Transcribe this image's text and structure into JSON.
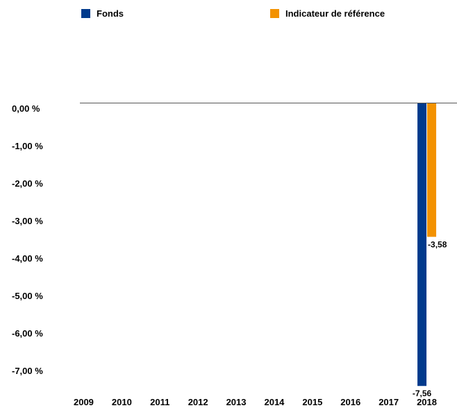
{
  "chart_data": {
    "type": "bar",
    "categories": [
      "2009",
      "2010",
      "2011",
      "2012",
      "2013",
      "2014",
      "2015",
      "2016",
      "2017",
      "2018"
    ],
    "series": [
      {
        "name": "Fonds",
        "color": "#003a8c",
        "values": [
          null,
          null,
          null,
          null,
          null,
          null,
          null,
          null,
          null,
          -7.56
        ],
        "labels": [
          "",
          "",
          "",
          "",
          "",
          "",
          "",
          "",
          "",
          "-7,56"
        ]
      },
      {
        "name": "Indicateur de référence",
        "color": "#f39200",
        "values": [
          null,
          null,
          null,
          null,
          null,
          null,
          null,
          null,
          null,
          -3.58
        ],
        "labels": [
          "",
          "",
          "",
          "",
          "",
          "",
          "",
          "",
          "",
          "-3,58"
        ]
      }
    ],
    "y_ticks": [
      0,
      -1,
      -2,
      -3,
      -4,
      -5,
      -6,
      -7
    ],
    "y_tick_labels": [
      "0,00 %",
      "-1,00 %",
      "-2,00 %",
      "-3,00 %",
      "-4,00 %",
      "-5,00 %",
      "-6,00 %",
      "-7,00 %"
    ],
    "ylim": [
      -7.56,
      0
    ],
    "grid": false,
    "legend_position": "top"
  }
}
